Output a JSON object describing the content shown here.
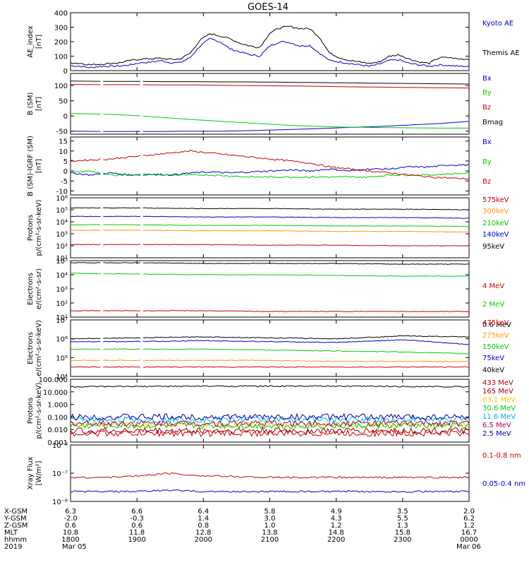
{
  "title": "GOES-14",
  "colors": {
    "black": "#000000",
    "blue": "#0000cc",
    "green": "#00cc00",
    "red": "#cc0000",
    "orange": "#ff9900",
    "cyan": "#00aaff",
    "darkred": "#990000",
    "yellow": "#ffcc00",
    "magenta": "#aa0077",
    "darkblue": "#000099"
  },
  "chart_data": [
    {
      "type": "line",
      "ylabel": [
        "AE_index",
        "[nT]"
      ],
      "ylim": [
        0,
        400
      ],
      "yticks": [
        "400",
        "300",
        "200",
        "100",
        "0"
      ],
      "tickvals": [
        400,
        300,
        200,
        100,
        0
      ],
      "series": [
        {
          "name": "Kyoto AE",
          "color": "#0000cc",
          "values": [
            35,
            30,
            20,
            30,
            30,
            32,
            40,
            55,
            58,
            70,
            55,
            55,
            90,
            170,
            220,
            200,
            150,
            130,
            110,
            100,
            170,
            200,
            195,
            170,
            175,
            120,
            70,
            60,
            50,
            40,
            30,
            45,
            70,
            75,
            50,
            40,
            30,
            40,
            35,
            30,
            30
          ]
        },
        {
          "name": "Themis AE",
          "color": "#000000",
          "values": [
            55,
            50,
            40,
            45,
            50,
            55,
            70,
            80,
            82,
            85,
            78,
            80,
            120,
            210,
            255,
            240,
            220,
            190,
            170,
            160,
            260,
            295,
            305,
            290,
            290,
            230,
            120,
            90,
            70,
            60,
            50,
            60,
            100,
            110,
            80,
            60,
            50,
            90,
            90,
            80,
            80
          ]
        }
      ]
    },
    {
      "type": "line",
      "ylabel": [
        "B (SM)",
        "[nT]"
      ],
      "ylim": [
        -60,
        140
      ],
      "yticks": [
        "150",
        "100",
        "50",
        "0",
        "-50"
      ],
      "tickvals": [
        150,
        100,
        50,
        0,
        -50
      ],
      "series": [
        {
          "name": "Bx",
          "color": "#0000cc",
          "values": [
            -50,
            -51,
            -51,
            -51,
            -50,
            -50,
            -48,
            -45,
            -42,
            -38,
            -35,
            -30,
            -25,
            -18
          ]
        },
        {
          "name": "By",
          "color": "#00cc00",
          "values": [
            8,
            6,
            2,
            -5,
            -12,
            -18,
            -24,
            -30,
            -34,
            -37,
            -38,
            -39,
            -40,
            -40
          ]
        },
        {
          "name": "Bz",
          "color": "#cc0000",
          "values": [
            104,
            103,
            103,
            102,
            102,
            101,
            100,
            99,
            98,
            96,
            95,
            94,
            93,
            92
          ]
        },
        {
          "name": "Bmag",
          "color": "#000000",
          "values": [
            115,
            114,
            114,
            113,
            113,
            112,
            112,
            111,
            110,
            109,
            108,
            107,
            106,
            105
          ]
        }
      ]
    },
    {
      "type": "line",
      "ylabel": [
        "B (SM)-IGRF (SM)",
        "[nT]"
      ],
      "ylim": [
        -12,
        17
      ],
      "yticks": [
        "15",
        "10",
        "5",
        "0",
        "-5",
        "-10"
      ],
      "tickvals": [
        15,
        10,
        5,
        0,
        -5,
        -10
      ],
      "series": [
        {
          "name": "Bx",
          "color": "#0000cc",
          "values": [
            -1,
            -2,
            -1,
            -2,
            -1.5,
            -2,
            -1,
            -0.5,
            -1,
            -0.5,
            0,
            0.5,
            0,
            1,
            0,
            1,
            1,
            2,
            2,
            3,
            3
          ]
        },
        {
          "name": "By",
          "color": "#00cc00",
          "values": [
            -1,
            0,
            -2,
            -2,
            -2,
            -2,
            -2,
            -2,
            -2.5,
            -3,
            -3,
            -3,
            -3,
            -3,
            -3,
            -3,
            -2,
            -2,
            -2,
            -1.5,
            -1
          ]
        },
        {
          "name": "Bz",
          "color": "#cc0000",
          "values": [
            5,
            5.5,
            6,
            7,
            8,
            9,
            10,
            9,
            8,
            7,
            6,
            5,
            4,
            2,
            1,
            0,
            -1,
            -2,
            -3,
            -3.5,
            -4
          ]
        }
      ]
    },
    {
      "type": "line",
      "ylabel": [
        "Protons",
        "p/(cm²-s-sr-keV)"
      ],
      "log": true,
      "ylim": [
        1,
        6
      ],
      "yticks": [
        "10¹",
        "10²",
        "10³",
        "10⁴",
        "10⁵",
        "10⁶"
      ],
      "tickvals": [
        1,
        2,
        3,
        4,
        5,
        6
      ],
      "series": [
        {
          "name": "575keV",
          "color": "#cc0000",
          "values": [
            2.1,
            2.1,
            2.1,
            2.05,
            2.05,
            2.0,
            2.0
          ]
        },
        {
          "name": "300keV",
          "color": "#ff9900",
          "values": [
            3.3,
            3.3,
            3.25,
            3.25,
            3.2,
            3.2,
            3.15
          ]
        },
        {
          "name": "210keV",
          "color": "#00cc00",
          "values": [
            3.75,
            3.75,
            3.7,
            3.7,
            3.65,
            3.65,
            3.6
          ]
        },
        {
          "name": "140keV",
          "color": "#0000cc",
          "values": [
            4.45,
            4.45,
            4.4,
            4.4,
            4.35,
            4.35,
            4.3
          ]
        },
        {
          "name": "95keV",
          "color": "#000000",
          "values": [
            5.15,
            5.15,
            5.1,
            5.1,
            5.05,
            5.05,
            5.0
          ]
        }
      ]
    },
    {
      "type": "line",
      "ylabel": [
        "Electrons",
        "e/(cm²-s-sr)"
      ],
      "log": true,
      "ylim": [
        1,
        5
      ],
      "yticks": [
        "10¹",
        "10²",
        "10³",
        "10⁴",
        "10⁵"
      ],
      "tickvals": [
        1,
        2,
        3,
        4,
        5
      ],
      "series": [
        {
          "name": "4 MeV",
          "color": "#cc0000",
          "values": [
            1.45,
            1.45,
            1.45,
            1.4,
            1.4,
            1.4,
            1.4
          ]
        },
        {
          "name": "2 MeV",
          "color": "#00cc00",
          "values": [
            4.1,
            4.05,
            4.0,
            4.0,
            3.95,
            3.9,
            3.9
          ]
        },
        {
          "name": "0.6 MeV",
          "color": "#000000",
          "values": [
            4.85,
            4.85,
            4.8,
            4.8,
            4.8,
            4.75,
            4.75
          ]
        }
      ]
    },
    {
      "type": "line",
      "ylabel": [
        "Electrons",
        "e/(cm²-s-sr-keV)"
      ],
      "log": true,
      "ylim": [
        4,
        7
      ],
      "yticks": [
        "10⁴",
        "10⁵",
        "10⁶",
        "10⁷"
      ],
      "tickvals": [
        4,
        5,
        6,
        7
      ],
      "series": [
        {
          "name": "475keV",
          "color": "#cc0000",
          "values": [
            4.5,
            4.5,
            4.5,
            4.5,
            4.5,
            4.5,
            4.5
          ]
        },
        {
          "name": "275keV",
          "color": "#ff9900",
          "values": [
            4.85,
            4.85,
            4.85,
            4.85,
            4.8,
            4.8,
            4.8
          ]
        },
        {
          "name": "150keV",
          "color": "#00cc00",
          "values": [
            5.45,
            5.45,
            5.45,
            5.4,
            5.35,
            5.3,
            5.2
          ]
        },
        {
          "name": "75keV",
          "color": "#0000cc",
          "values": [
            5.85,
            5.85,
            5.9,
            5.85,
            5.8,
            5.95,
            5.7
          ]
        },
        {
          "name": "40keV",
          "color": "#000000",
          "values": [
            6.0,
            6.05,
            6.1,
            6.05,
            6.0,
            6.15,
            6.1
          ]
        }
      ]
    },
    {
      "type": "line",
      "ylabel": [
        "Protons",
        "p/(cm²-s-sr-keV)"
      ],
      "log": true,
      "ylim": [
        -3,
        2
      ],
      "yticks": [
        "0.001",
        "0.010",
        "0.100",
        "1.000",
        "10.000",
        "100.000"
      ],
      "tickvals": [
        -3,
        -2,
        -1,
        0,
        1,
        2
      ],
      "series": [
        {
          "name": "433 MeV",
          "color": "#cc0000",
          "values": [
            -2.3,
            -2.3,
            -2.3,
            -2.3
          ]
        },
        {
          "name": "165 MeV",
          "color": "#990000",
          "values": [
            -2.1,
            -2.1,
            -2.1,
            -2.1
          ]
        },
        {
          "name": "63.1 MeV",
          "color": "#ffcc00",
          "values": [
            -1.6,
            -1.6,
            -1.6,
            -1.6
          ]
        },
        {
          "name": "30.6 MeV",
          "color": "#00cc00",
          "values": [
            -1.7,
            -1.7,
            -1.7,
            -1.7
          ]
        },
        {
          "name": "11.6 MeV",
          "color": "#00aaff",
          "values": [
            -1.2,
            -1.2,
            -1.2,
            -1.2
          ]
        },
        {
          "name": "6.5 MeV",
          "color": "#aa0077",
          "values": [
            -1.5,
            -1.5,
            -1.5,
            -1.5
          ]
        },
        {
          "name": "2.5 MeV",
          "color": "#000099",
          "values": [
            -1.0,
            -1.0,
            -1.0,
            -1.0
          ]
        },
        {
          "name": "",
          "color": "#000000",
          "values": [
            1.4,
            1.45,
            1.45,
            1.4
          ]
        }
      ]
    },
    {
      "type": "line",
      "ylabel": [
        "Xray Flux",
        "[W/m²]"
      ],
      "log": true,
      "ylim": [
        -8,
        -6
      ],
      "yticks": [
        "10⁻⁶",
        "10⁻⁷",
        "10⁻⁸"
      ],
      "tickvals": [
        -6,
        -7,
        -8
      ],
      "series": [
        {
          "name": "0.1-0.8 nm",
          "color": "#cc0000",
          "values": [
            -7.15,
            -7.15,
            -7.1,
            -7.0,
            -7.1,
            -7.12,
            -7.15,
            -7.15,
            -7.15,
            -7.15,
            -7.15,
            -7.15,
            -7.15
          ]
        },
        {
          "name": "0.05-0.4 nm",
          "color": "#0000cc",
          "values": [
            -7.65,
            -7.65,
            -7.65,
            -7.6,
            -7.65,
            -7.65,
            -7.65,
            -7.65,
            -7.65,
            -7.65,
            -7.65,
            -7.65,
            -7.65
          ]
        }
      ]
    }
  ],
  "xaxis": {
    "rows": [
      {
        "label": "X-GSM",
        "values": [
          "6.3",
          "6.6",
          "6.4",
          "5.8",
          "4.9",
          "3.5",
          "2.0"
        ]
      },
      {
        "label": "Y-GSM",
        "values": [
          "-2.0",
          "-0.3",
          "1.4",
          "3.0",
          "4.3",
          "5.5",
          "6.2"
        ]
      },
      {
        "label": "Z-GSM",
        "values": [
          "0.6",
          "0.6",
          "0.8",
          "1.0",
          "1.2",
          "1.3",
          "1.2"
        ]
      },
      {
        "label": "MLT",
        "values": [
          "10.8",
          "11.8",
          "12.8",
          "13.8",
          "14.8",
          "15.8",
          "16.7"
        ]
      },
      {
        "label": "hhmm",
        "values": [
          "1800",
          "1900",
          "2000",
          "2100",
          "2200",
          "2300",
          "0000"
        ]
      }
    ],
    "year": "2019",
    "date_start": "Mar 05",
    "date_end": "Mar 06"
  }
}
